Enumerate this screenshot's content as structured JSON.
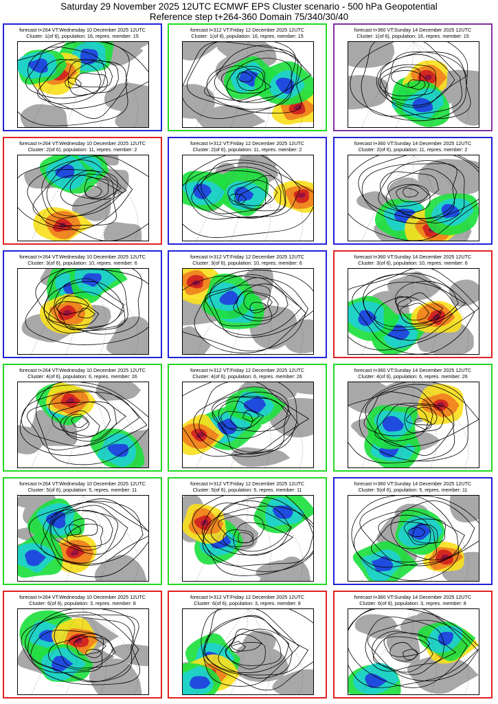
{
  "header": {
    "title_line1": "Saturday 29 November 2025 12UTC ECMWF EPS Cluster scenario - 500 hPa Geopotential",
    "title_line2": "Reference step t+264-360 Domain 75/340/30/40"
  },
  "colors": {
    "blue": "#2020d8",
    "red": "#e02020",
    "green": "#20d820",
    "purple": "#8030a0"
  },
  "panels": [
    {
      "line1": "forecast t+264 VT:Wednesday 10 December 2025 12UTC",
      "line2": "Cluster: 1(of 6), population: 16, repres. member: 15",
      "border": "blue"
    },
    {
      "line1": "forecast t+312 VT:Friday 12 December 2025 12UTC",
      "line2": "Cluster: 1(of 6), population: 16, repres. member: 15",
      "border": "green"
    },
    {
      "line1": "forecast t+360 VT:Sunday 14 December 2025 12UTC",
      "line2": "Cluster: 1(of 6), population: 16, repres. member: 15",
      "border": "purple"
    },
    {
      "line1": "forecast t+264 VT:Wednesday 10 December 2025 12UTC",
      "line2": "Cluster: 2(of 6), population: 11, repres. member: 2",
      "border": "red"
    },
    {
      "line1": "forecast t+312 VT:Friday 12 December 2025 12UTC",
      "line2": "Cluster: 2(of 6), population: 11, repres. member: 2",
      "border": "blue"
    },
    {
      "line1": "forecast t+360 VT:Sunday 14 December 2025 12UTC",
      "line2": "Cluster: 2(of 6), population: 11, repres. member: 2",
      "border": "blue"
    },
    {
      "line1": "forecast t+264 VT:Wednesday 10 December 2025 12UTC",
      "line2": "Cluster: 3(of 6), population: 10, repres. member: 6",
      "border": "blue"
    },
    {
      "line1": "forecast t+312 VT:Friday 12 December 2025 12UTC",
      "line2": "Cluster: 3(of 6), population: 10, repres. member: 6",
      "border": "blue"
    },
    {
      "line1": "forecast t+360 VT:Sunday 14 December 2025 12UTC",
      "line2": "Cluster: 3(of 6), population: 10, repres. member: 6",
      "border": "red"
    },
    {
      "line1": "forecast t+264 VT:Wednesday 10 December 2025 12UTC",
      "line2": "Cluster: 4(of 6), population: 6, repres. member: 26",
      "border": "green"
    },
    {
      "line1": "forecast t+312 VT:Friday 12 December 2025 12UTC",
      "line2": "Cluster: 4(of 6), population: 6, repres. member: 26",
      "border": "green"
    },
    {
      "line1": "forecast t+360 VT:Sunday 14 December 2025 12UTC",
      "line2": "Cluster: 4(of 6), population: 6, repres. member: 26",
      "border": "green"
    },
    {
      "line1": "forecast t+264 VT:Wednesday 10 December 2025 12UTC",
      "line2": "Cluster: 5(of 6), population: 5, repres. member: 11",
      "border": "green"
    },
    {
      "line1": "forecast t+312 VT:Friday 12 December 2025 12UTC",
      "line2": "Cluster: 5(of 6), population: 5, repres. member: 11",
      "border": "green"
    },
    {
      "line1": "forecast t+360 VT:Sunday 14 December 2025 12UTC",
      "line2": "Cluster: 5(of 6), population: 5, repres. member: 11",
      "border": "blue"
    },
    {
      "line1": "forecast t+264 VT:Wednesday 10 December 2025 12UTC",
      "line2": "Cluster: 6(of 6), population: 3, repres. member: 8",
      "border": "red"
    },
    {
      "line1": "forecast t+312 VT:Friday 12 December 2025 12UTC",
      "line2": "Cluster: 6(of 6), population: 3, repres. member: 8",
      "border": "red"
    },
    {
      "line1": "forecast t+360 VT:Sunday 14 December 2025 12UTC",
      "line2": "Cluster: 6(of 6), population: 3, repres. member: 8",
      "border": "red"
    }
  ]
}
